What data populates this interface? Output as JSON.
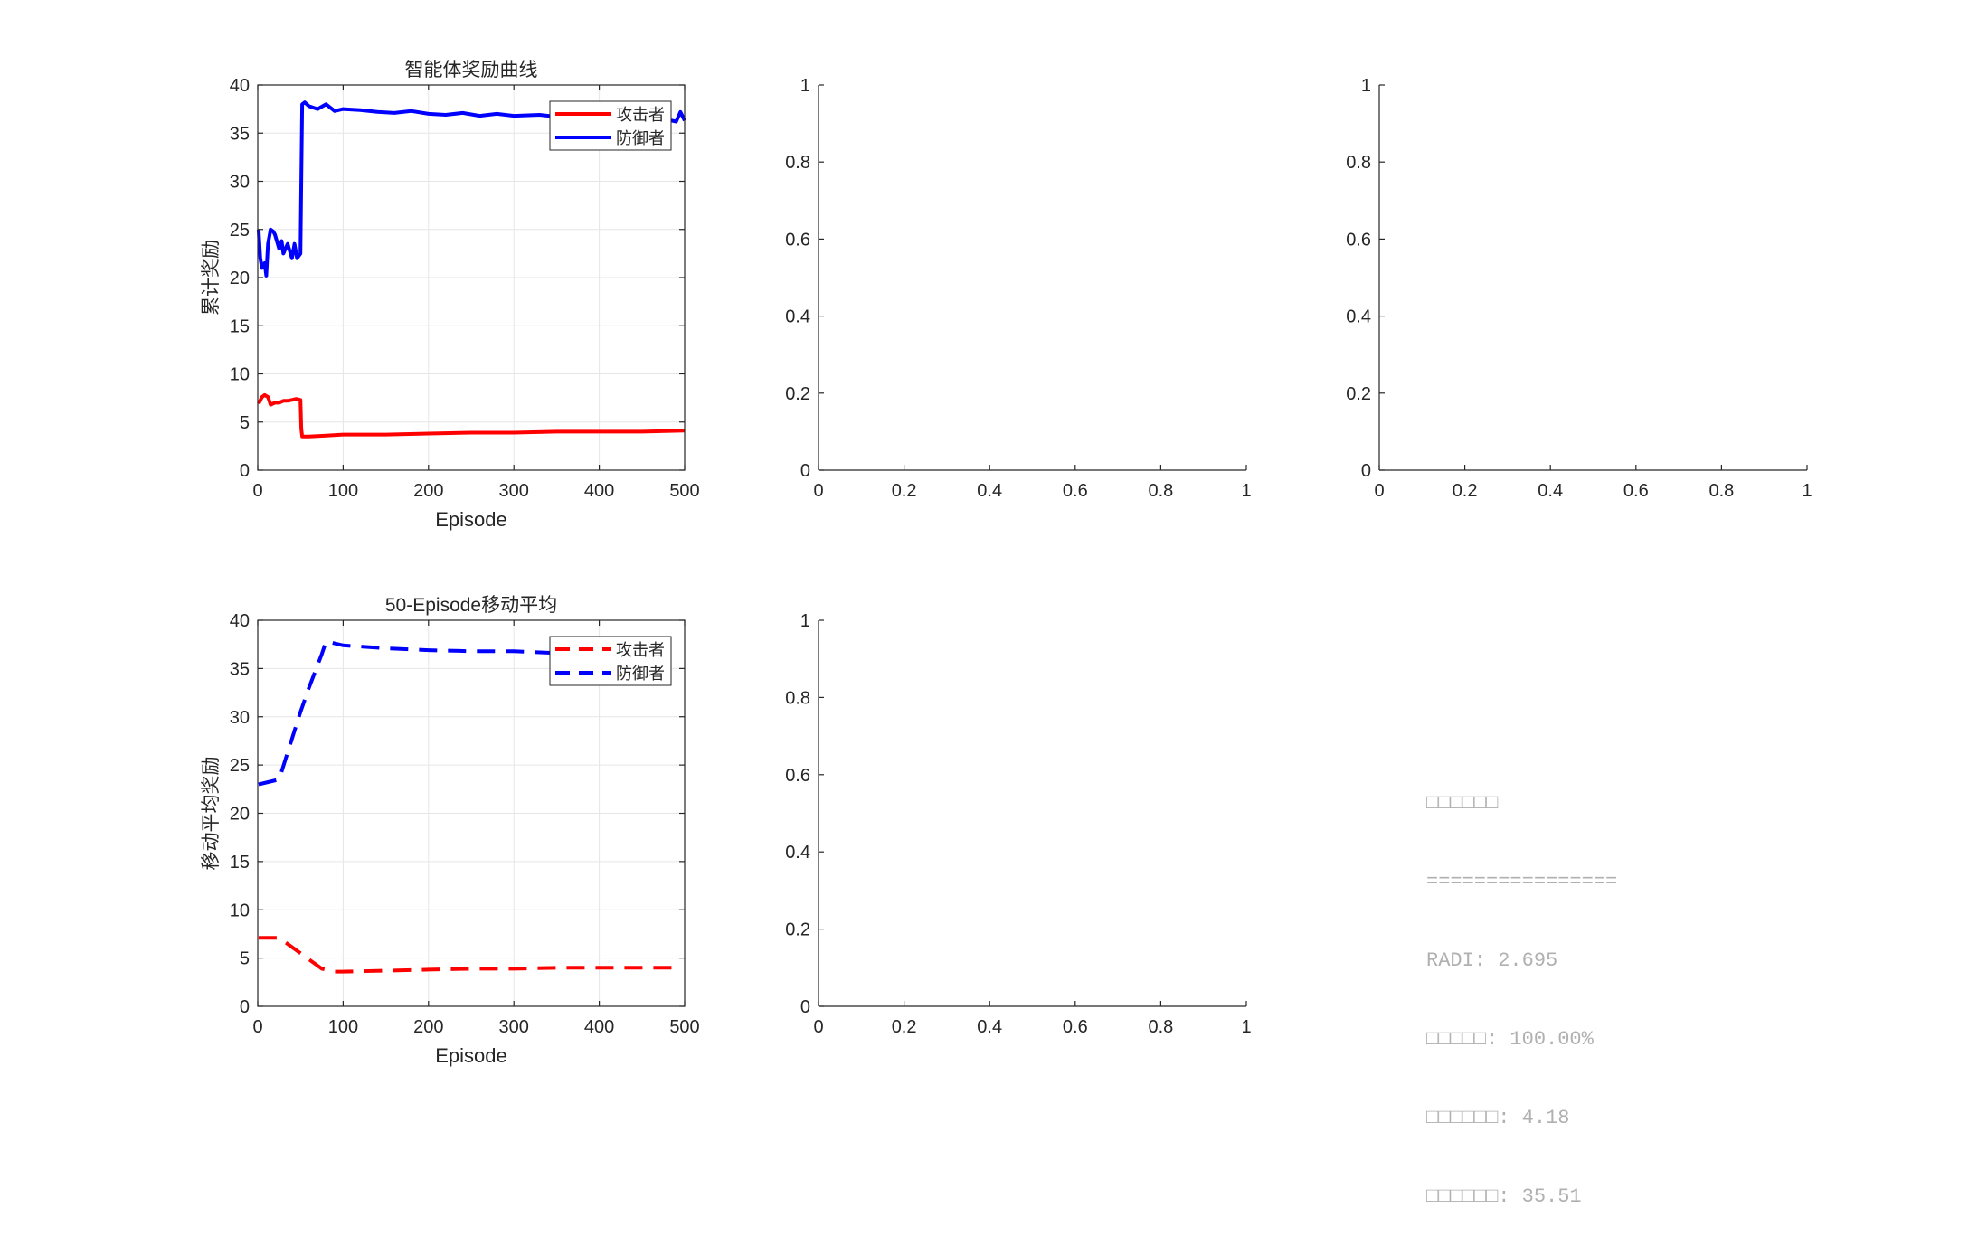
{
  "chart_data": [
    {
      "type": "line",
      "title": "智能体奖励曲线",
      "xlabel": "Episode",
      "ylabel": "累计奖励",
      "xlim": [
        0,
        500
      ],
      "ylim": [
        0,
        40
      ],
      "xticks": [
        0,
        100,
        200,
        300,
        400,
        500
      ],
      "yticks": [
        0,
        5,
        10,
        15,
        20,
        25,
        30,
        35,
        40
      ],
      "grid": true,
      "legend": "top-right",
      "series": [
        {
          "name": "攻击者",
          "color": "#ff0000",
          "style": "solid",
          "x": [
            1,
            5,
            8,
            12,
            15,
            20,
            25,
            30,
            35,
            40,
            45,
            50,
            51,
            52,
            60,
            80,
            100,
            150,
            200,
            250,
            300,
            350,
            400,
            450,
            500
          ],
          "y": [
            6.9,
            7.6,
            7.8,
            7.6,
            6.8,
            7.0,
            7.0,
            7.2,
            7.2,
            7.3,
            7.4,
            7.3,
            4.3,
            3.5,
            3.5,
            3.6,
            3.7,
            3.7,
            3.8,
            3.9,
            3.9,
            4.0,
            4.0,
            4.0,
            4.1
          ]
        },
        {
          "name": "防御者",
          "color": "#0000ff",
          "style": "solid",
          "x": [
            1,
            3,
            5,
            8,
            10,
            12,
            15,
            18,
            20,
            25,
            28,
            30,
            35,
            40,
            43,
            46,
            50,
            51,
            52,
            55,
            60,
            70,
            80,
            90,
            100,
            120,
            140,
            160,
            180,
            200,
            220,
            240,
            260,
            280,
            300,
            330,
            360,
            400,
            440,
            470,
            490,
            495,
            500
          ],
          "y": [
            25.0,
            22.0,
            21.0,
            21.5,
            20.2,
            23.5,
            25.0,
            24.8,
            24.5,
            23.0,
            23.8,
            22.5,
            23.5,
            22.0,
            23.5,
            22.0,
            22.5,
            30.0,
            38.0,
            38.2,
            37.8,
            37.5,
            38.0,
            37.3,
            37.5,
            37.4,
            37.2,
            37.1,
            37.3,
            37.0,
            36.9,
            37.1,
            36.8,
            37.0,
            36.8,
            36.9,
            36.6,
            36.7,
            36.5,
            36.6,
            36.2,
            37.2,
            36.3
          ]
        }
      ]
    },
    {
      "type": "line",
      "title": "",
      "xlim": [
        0,
        1
      ],
      "ylim": [
        0,
        1
      ],
      "xticks": [
        0,
        0.2,
        0.4,
        0.6,
        0.8,
        1
      ],
      "yticks": [
        0,
        0.2,
        0.4,
        0.6,
        0.8,
        1
      ],
      "grid": false,
      "series": []
    },
    {
      "type": "line",
      "title": "",
      "xlim": [
        0,
        1
      ],
      "ylim": [
        0,
        1
      ],
      "xticks": [
        0,
        0.2,
        0.4,
        0.6,
        0.8,
        1
      ],
      "yticks": [
        0,
        0.2,
        0.4,
        0.6,
        0.8,
        1
      ],
      "grid": false,
      "series": []
    },
    {
      "type": "line",
      "title": "50-Episode移动平均",
      "xlabel": "Episode",
      "ylabel": "移动平均奖励",
      "xlim": [
        0,
        500
      ],
      "ylim": [
        0,
        40
      ],
      "xticks": [
        0,
        100,
        200,
        300,
        400,
        500
      ],
      "yticks": [
        0,
        5,
        10,
        15,
        20,
        25,
        30,
        35,
        40
      ],
      "grid": true,
      "legend": "top-right",
      "series": [
        {
          "name": "攻击者",
          "color": "#ff0000",
          "style": "dashed",
          "x": [
            1,
            25,
            50,
            75,
            90,
            100,
            150,
            200,
            250,
            300,
            350,
            400,
            450,
            490
          ],
          "y": [
            7.1,
            7.1,
            5.5,
            3.9,
            3.6,
            3.6,
            3.7,
            3.8,
            3.9,
            3.9,
            4.0,
            4.0,
            4.0,
            4.0
          ]
        },
        {
          "name": "防御者",
          "color": "#0000ff",
          "style": "dashed",
          "x": [
            1,
            25,
            50,
            60,
            75,
            80,
            90,
            100,
            150,
            200,
            250,
            300,
            350,
            400,
            450,
            490
          ],
          "y": [
            23.0,
            23.5,
            30.5,
            33.0,
            36.5,
            37.8,
            37.6,
            37.4,
            37.1,
            36.9,
            36.8,
            36.8,
            36.6,
            36.5,
            36.5,
            36.5
          ]
        }
      ]
    },
    {
      "type": "line",
      "title": "",
      "xlim": [
        0,
        1
      ],
      "ylim": [
        0,
        1
      ],
      "xticks": [
        0,
        0.2,
        0.4,
        0.6,
        0.8,
        1
      ],
      "yticks": [
        0,
        0.2,
        0.4,
        0.6,
        0.8,
        1
      ],
      "grid": false,
      "series": []
    }
  ],
  "summary": {
    "lines": [
      "□□□□□□",
      "================",
      "RADI: 2.695",
      "□□□□□: 100.00%",
      "□□□□□□: 4.18",
      "□□□□□□: 35.51"
    ]
  }
}
